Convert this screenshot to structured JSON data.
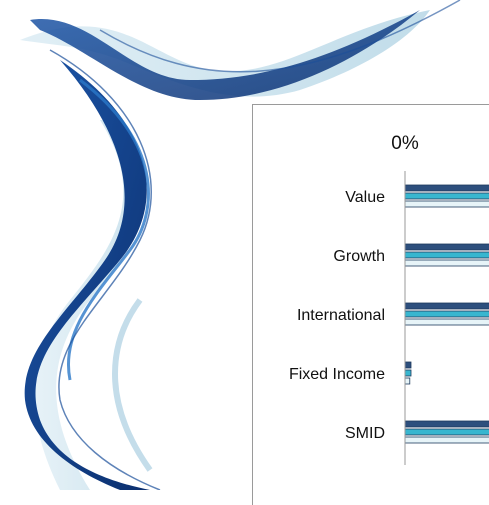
{
  "chart_data": {
    "type": "bar",
    "orientation": "horizontal",
    "x_tick_labels": [
      "0%"
    ],
    "categories": [
      "Value",
      "Growth",
      "International",
      "Fixed Income",
      "SMID"
    ],
    "series": [
      {
        "values": [
          0.9,
          0.9,
          0.9,
          0.05,
          0.9
        ]
      },
      {
        "values": [
          0.9,
          0.9,
          0.9,
          0.05,
          0.9
        ]
      },
      {
        "values": [
          0.9,
          0.9,
          0.9,
          0.04,
          0.9
        ]
      }
    ],
    "xlim": [
      0,
      1
    ],
    "grid": false,
    "legend": false,
    "colors": {
      "series_dark": "#2d4f7d",
      "series_mid": "#38b6cf",
      "series_light": "#e7f4f8",
      "axis": "#9a9a9a",
      "decor_dark": "#0f3f8e",
      "decor_light": "#a9cfe0"
    }
  }
}
